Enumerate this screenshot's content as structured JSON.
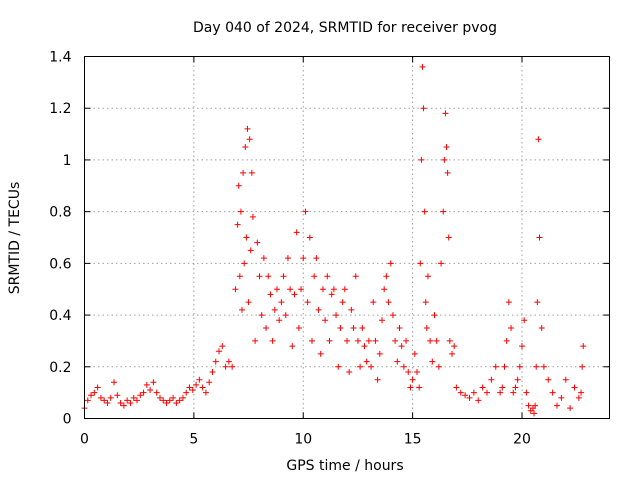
{
  "chart_data": {
    "type": "scatter",
    "title": "Day 040 of 2024, SRMTID for receiver pvog",
    "xlabel": "GPS time / hours",
    "ylabel": "SRMTID / TECUs",
    "xlim": [
      0,
      24
    ],
    "ylim": [
      0,
      1.4
    ],
    "xticks": [
      0,
      5,
      10,
      15,
      20
    ],
    "xtick_labels": [
      "0",
      "5",
      "10",
      "15",
      "20"
    ],
    "yticks": [
      0,
      0.2,
      0.4,
      0.6,
      0.8,
      1,
      1.2,
      1.4
    ],
    "ytick_labels": [
      "0",
      "0.2",
      "0.4",
      "0.6",
      "0.8",
      "1",
      "1.2",
      "1.4"
    ],
    "grid": true,
    "marker": "+",
    "series": [
      {
        "name": "SRMTID",
        "color": "#ff0000",
        "x": [
          0.0,
          0.15,
          0.3,
          0.45,
          0.6,
          0.75,
          0.9,
          1.05,
          1.2,
          1.35,
          1.5,
          1.65,
          1.8,
          1.95,
          2.1,
          2.25,
          2.4,
          2.55,
          2.7,
          2.85,
          3.0,
          3.15,
          3.3,
          3.45,
          3.6,
          3.75,
          3.9,
          4.05,
          4.2,
          4.35,
          4.5,
          4.65,
          4.8,
          4.95,
          5.1,
          5.25,
          5.4,
          5.55,
          5.7,
          5.85,
          6.0,
          6.15,
          6.3,
          6.45,
          6.6,
          6.75,
          6.9,
          7.0,
          7.05,
          7.1,
          7.15,
          7.2,
          7.25,
          7.3,
          7.35,
          7.4,
          7.45,
          7.5,
          7.55,
          7.6,
          7.65,
          7.7,
          7.8,
          7.9,
          8.0,
          8.1,
          8.2,
          8.3,
          8.4,
          8.5,
          8.6,
          8.7,
          8.8,
          8.9,
          9.0,
          9.1,
          9.2,
          9.3,
          9.4,
          9.5,
          9.6,
          9.7,
          9.8,
          9.9,
          10.0,
          10.1,
          10.2,
          10.3,
          10.4,
          10.5,
          10.6,
          10.7,
          10.8,
          10.9,
          11.0,
          11.1,
          11.2,
          11.3,
          11.4,
          11.5,
          11.6,
          11.7,
          11.8,
          11.9,
          12.0,
          12.1,
          12.2,
          12.3,
          12.4,
          12.5,
          12.6,
          12.7,
          12.8,
          12.9,
          13.0,
          13.1,
          13.2,
          13.3,
          13.4,
          13.5,
          13.6,
          13.7,
          13.8,
          13.9,
          14.0,
          14.1,
          14.2,
          14.3,
          14.4,
          14.5,
          14.6,
          14.7,
          14.8,
          14.9,
          15.0,
          15.1,
          15.2,
          15.3,
          15.35,
          15.4,
          15.45,
          15.5,
          15.55,
          15.6,
          15.65,
          15.7,
          15.8,
          15.9,
          16.0,
          16.1,
          16.2,
          16.3,
          16.4,
          16.45,
          16.5,
          16.55,
          16.6,
          16.65,
          16.7,
          16.8,
          16.9,
          17.0,
          17.2,
          17.4,
          17.6,
          17.8,
          18.0,
          18.2,
          18.4,
          18.6,
          18.8,
          19.0,
          19.1,
          19.2,
          19.3,
          19.4,
          19.5,
          19.6,
          19.7,
          19.8,
          19.9,
          20.0,
          20.1,
          20.2,
          20.3,
          20.4,
          20.5,
          20.55,
          20.6,
          20.65,
          20.7,
          20.75,
          20.8,
          20.9,
          21.0,
          21.2,
          21.4,
          21.6,
          21.8,
          22.0,
          22.2,
          22.4,
          22.6,
          22.7,
          22.75,
          22.8
        ],
        "y": [
          0.04,
          0.07,
          0.09,
          0.1,
          0.12,
          0.08,
          0.07,
          0.06,
          0.08,
          0.14,
          0.09,
          0.06,
          0.05,
          0.07,
          0.06,
          0.08,
          0.07,
          0.09,
          0.1,
          0.13,
          0.11,
          0.14,
          0.1,
          0.08,
          0.07,
          0.06,
          0.07,
          0.08,
          0.06,
          0.07,
          0.08,
          0.1,
          0.12,
          0.11,
          0.13,
          0.15,
          0.12,
          0.1,
          0.14,
          0.18,
          0.22,
          0.26,
          0.28,
          0.2,
          0.22,
          0.2,
          0.5,
          0.75,
          0.9,
          0.55,
          0.8,
          0.42,
          0.95,
          0.6,
          1.05,
          0.7,
          1.12,
          0.45,
          1.08,
          0.65,
          0.95,
          0.78,
          0.3,
          0.68,
          0.55,
          0.4,
          0.62,
          0.35,
          0.55,
          0.48,
          0.3,
          0.42,
          0.5,
          0.38,
          0.45,
          0.55,
          0.4,
          0.62,
          0.5,
          0.28,
          0.48,
          0.72,
          0.35,
          0.5,
          0.62,
          0.8,
          0.45,
          0.7,
          0.3,
          0.55,
          0.62,
          0.42,
          0.25,
          0.5,
          0.38,
          0.55,
          0.3,
          0.48,
          0.5,
          0.4,
          0.2,
          0.35,
          0.45,
          0.5,
          0.3,
          0.18,
          0.42,
          0.35,
          0.55,
          0.3,
          0.2,
          0.35,
          0.28,
          0.22,
          0.3,
          0.2,
          0.45,
          0.3,
          0.15,
          0.25,
          0.38,
          0.5,
          0.55,
          0.45,
          0.6,
          0.4,
          0.3,
          0.22,
          0.35,
          0.28,
          0.2,
          0.3,
          0.18,
          0.12,
          0.15,
          0.25,
          0.18,
          0.12,
          0.6,
          1.0,
          1.36,
          1.2,
          0.8,
          0.45,
          0.35,
          0.55,
          0.3,
          0.22,
          0.4,
          0.3,
          0.2,
          0.6,
          0.8,
          1.0,
          1.18,
          1.05,
          0.95,
          0.7,
          0.3,
          0.25,
          0.28,
          0.12,
          0.1,
          0.09,
          0.08,
          0.1,
          0.07,
          0.12,
          0.1,
          0.15,
          0.2,
          0.1,
          0.12,
          0.2,
          0.3,
          0.45,
          0.35,
          0.1,
          0.12,
          0.15,
          0.2,
          0.28,
          0.38,
          0.1,
          0.05,
          0.03,
          0.04,
          0.02,
          0.05,
          0.2,
          0.45,
          1.08,
          0.7,
          0.35,
          0.2,
          0.15,
          0.1,
          0.05,
          0.08,
          0.15,
          0.04,
          0.12,
          0.08,
          0.1,
          0.2,
          0.28
        ]
      }
    ]
  }
}
